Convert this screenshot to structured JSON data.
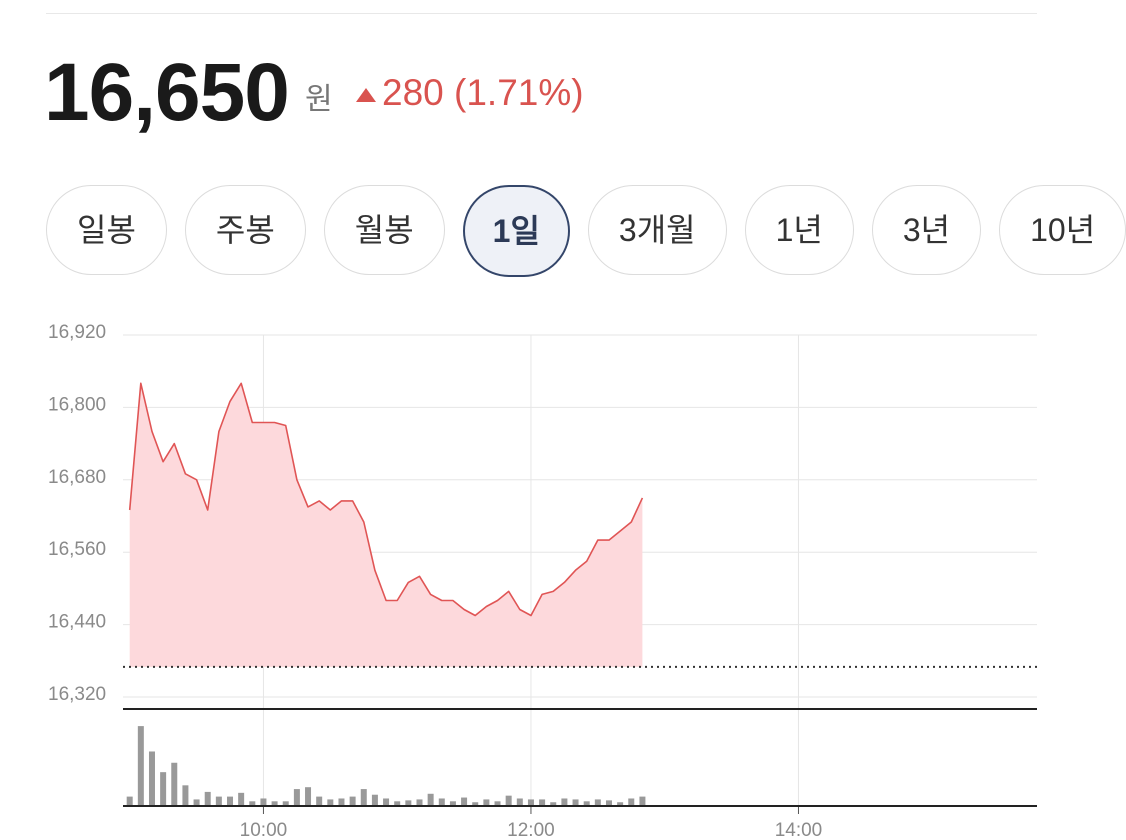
{
  "header": {
    "price": "16,650",
    "unit": "원",
    "change": "280 (1.71%)"
  },
  "tabs": [
    {
      "label": "일봉"
    },
    {
      "label": "주봉"
    },
    {
      "label": "월봉"
    },
    {
      "label": "1일"
    },
    {
      "label": "3개월"
    },
    {
      "label": "1년"
    },
    {
      "label": "3년"
    },
    {
      "label": "10년"
    }
  ],
  "selected_tab": 3,
  "chart_data": {
    "type": "line",
    "x": [
      "09:00",
      "09:05",
      "09:10",
      "09:15",
      "09:20",
      "09:25",
      "09:30",
      "09:35",
      "09:40",
      "09:45",
      "09:50",
      "09:55",
      "10:00",
      "10:05",
      "10:10",
      "10:15",
      "10:20",
      "10:25",
      "10:30",
      "10:35",
      "10:40",
      "10:45",
      "10:50",
      "10:55",
      "11:00",
      "11:05",
      "11:10",
      "11:15",
      "11:20",
      "11:25",
      "11:30",
      "11:35",
      "11:40",
      "11:45",
      "11:50",
      "11:55",
      "12:00",
      "12:05",
      "12:10",
      "12:15",
      "12:20",
      "12:25",
      "12:30",
      "12:35",
      "12:40",
      "12:45",
      "12:50"
    ],
    "series": [
      {
        "color": "#e05555",
        "fill": "#fdd9dc",
        "values": [
          16630,
          16840,
          16760,
          16710,
          16740,
          16690,
          16680,
          16630,
          16760,
          16810,
          16840,
          16775,
          16775,
          16775,
          16770,
          16680,
          16635,
          16645,
          16630,
          16645,
          16645,
          16610,
          16530,
          16480,
          16480,
          16510,
          16520,
          16490,
          16480,
          16480,
          16465,
          16455,
          16470,
          16480,
          16495,
          16465,
          16455,
          16490,
          16495,
          16510,
          16530,
          16545,
          16580,
          16580,
          16595,
          16610,
          16650
        ]
      }
    ],
    "volume": {
      "color": "#999999",
      "ylim": [
        0,
        100
      ],
      "values": [
        10,
        85,
        58,
        36,
        46,
        22,
        7,
        15,
        10,
        10,
        14,
        5,
        8,
        5,
        5,
        18,
        20,
        10,
        7,
        8,
        10,
        18,
        12,
        8,
        5,
        6,
        7,
        13,
        8,
        5,
        9,
        4,
        7,
        5,
        11,
        8,
        7,
        7,
        4,
        8,
        7,
        5,
        7,
        6,
        4,
        8,
        10
      ]
    },
    "reference_value": 16370,
    "xlim": [
      "08:57",
      "15:47"
    ],
    "xticks": [
      "10:00",
      "12:00",
      "14:00"
    ],
    "ylim": [
      16320,
      16920
    ],
    "yticks": [
      {
        "value": 16320,
        "label": "16,320"
      },
      {
        "value": 16440,
        "label": "16,440"
      },
      {
        "value": 16560,
        "label": "16,560"
      },
      {
        "value": 16680,
        "label": "16,680"
      },
      {
        "value": 16800,
        "label": "16,800"
      },
      {
        "value": 16920,
        "label": "16,920"
      }
    ],
    "grid": true
  }
}
